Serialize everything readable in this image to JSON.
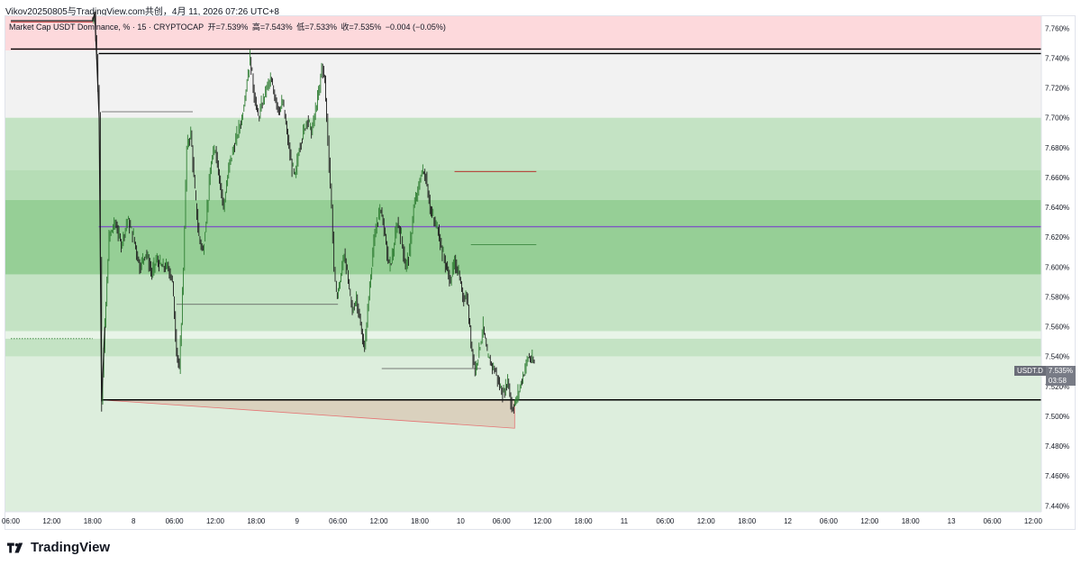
{
  "attribution": "Vikov20250805与TradingView.com共创，4月 11, 2026 07:26 UTC+8",
  "legend": {
    "symbol": "Market Cap USDT Dominance, % · 15 · CRYPTOCAP",
    "open": "开=7.539%",
    "high": "高=7.543%",
    "low": "低=7.533%",
    "close": "收=7.535%",
    "change": "−0.004 (−0.05%)"
  },
  "price_tag": {
    "symbol": "USDT.D",
    "price": "7.535%",
    "countdown": "03:58"
  },
  "logo_text": "TradingView",
  "colors": {
    "red_zone": "#fdd9dc",
    "gray_zone": "#f2f2f2",
    "green_light": "#ddeedd",
    "green_mid": "#c4e3c4",
    "green_dark": "#96cf96",
    "purple_line": "#7e57c2",
    "candle_up": "#2e7d32",
    "candle_down": "#1b1b1b"
  },
  "chart_data": {
    "type": "line",
    "symbol": "USDT.D",
    "interval": "15",
    "y_ticks": [
      "7.760%",
      "7.740%",
      "7.720%",
      "7.700%",
      "7.680%",
      "7.660%",
      "7.640%",
      "7.620%",
      "7.600%",
      "7.580%",
      "7.560%",
      "7.540%",
      "7.520%",
      "7.500%",
      "7.480%",
      "7.460%",
      "7.440%"
    ],
    "x_ticks": [
      "06:00",
      "12:00",
      "18:00",
      "8",
      "06:00",
      "12:00",
      "18:00",
      "9",
      "06:00",
      "12:00",
      "18:00",
      "10",
      "06:00",
      "12:00",
      "18:00",
      "11",
      "06:00",
      "12:00",
      "18:00",
      "12",
      "06:00",
      "12:00",
      "18:00",
      "13",
      "06:00",
      "12:00"
    ],
    "ylim": [
      7.436,
      7.768
    ],
    "x_start": "7 06:00",
    "x_end": "13 12:00",
    "x_slots": 25,
    "series": [
      {
        "values": [
          [
            0.0,
            7.765
          ],
          [
            2.0,
            7.765
          ],
          [
            2.05,
            7.77
          ],
          [
            2.1,
            7.74
          ],
          [
            2.16,
            7.7
          ],
          [
            2.22,
            7.51
          ],
          [
            2.3,
            7.56
          ],
          [
            2.4,
            7.62
          ],
          [
            2.55,
            7.63
          ],
          [
            2.7,
            7.615
          ],
          [
            2.85,
            7.632
          ],
          [
            3.0,
            7.62
          ],
          [
            3.15,
            7.6
          ],
          [
            3.3,
            7.61
          ],
          [
            3.45,
            7.595
          ],
          [
            3.55,
            7.605
          ],
          [
            3.7,
            7.6
          ],
          [
            3.85,
            7.6
          ],
          [
            3.95,
            7.59
          ],
          [
            4.05,
            7.545
          ],
          [
            4.12,
            7.53
          ],
          [
            4.22,
            7.6
          ],
          [
            4.3,
            7.68
          ],
          [
            4.4,
            7.69
          ],
          [
            4.5,
            7.65
          ],
          [
            4.6,
            7.62
          ],
          [
            4.7,
            7.61
          ],
          [
            4.8,
            7.64
          ],
          [
            4.9,
            7.67
          ],
          [
            5.0,
            7.68
          ],
          [
            5.1,
            7.66
          ],
          [
            5.2,
            7.64
          ],
          [
            5.35,
            7.67
          ],
          [
            5.45,
            7.68
          ],
          [
            5.55,
            7.69
          ],
          [
            5.65,
            7.7
          ],
          [
            5.75,
            7.72
          ],
          [
            5.85,
            7.74
          ],
          [
            5.95,
            7.715
          ],
          [
            6.05,
            7.7
          ],
          [
            6.15,
            7.71
          ],
          [
            6.25,
            7.72
          ],
          [
            6.35,
            7.725
          ],
          [
            6.45,
            7.715
          ],
          [
            6.55,
            7.705
          ],
          [
            6.65,
            7.71
          ],
          [
            6.75,
            7.69
          ],
          [
            6.85,
            7.67
          ],
          [
            6.95,
            7.66
          ],
          [
            7.05,
            7.68
          ],
          [
            7.15,
            7.69
          ],
          [
            7.25,
            7.7
          ],
          [
            7.35,
            7.69
          ],
          [
            7.45,
            7.705
          ],
          [
            7.55,
            7.72
          ],
          [
            7.6,
            7.735
          ],
          [
            7.68,
            7.725
          ],
          [
            7.72,
            7.7
          ],
          [
            7.78,
            7.67
          ],
          [
            7.84,
            7.64
          ],
          [
            7.9,
            7.6
          ],
          [
            7.96,
            7.58
          ],
          [
            8.05,
            7.59
          ],
          [
            8.15,
            7.61
          ],
          [
            8.25,
            7.59
          ],
          [
            8.35,
            7.57
          ],
          [
            8.45,
            7.58
          ],
          [
            8.55,
            7.56
          ],
          [
            8.65,
            7.545
          ],
          [
            8.75,
            7.58
          ],
          [
            8.85,
            7.61
          ],
          [
            8.95,
            7.63
          ],
          [
            9.05,
            7.64
          ],
          [
            9.15,
            7.62
          ],
          [
            9.25,
            7.6
          ],
          [
            9.35,
            7.61
          ],
          [
            9.45,
            7.63
          ],
          [
            9.55,
            7.62
          ],
          [
            9.65,
            7.6
          ],
          [
            9.75,
            7.61
          ],
          [
            9.85,
            7.64
          ],
          [
            9.95,
            7.65
          ],
          [
            10.05,
            7.665
          ],
          [
            10.15,
            7.66
          ],
          [
            10.25,
            7.64
          ],
          [
            10.35,
            7.63
          ],
          [
            10.45,
            7.625
          ],
          [
            10.55,
            7.61
          ],
          [
            10.65,
            7.6
          ],
          [
            10.75,
            7.59
          ],
          [
            10.85,
            7.605
          ],
          [
            10.95,
            7.595
          ],
          [
            11.05,
            7.58
          ],
          [
            11.15,
            7.58
          ],
          [
            11.25,
            7.55
          ],
          [
            11.35,
            7.53
          ],
          [
            11.45,
            7.545
          ],
          [
            11.55,
            7.56
          ],
          [
            11.65,
            7.54
          ],
          [
            11.75,
            7.535
          ],
          [
            11.85,
            7.53
          ],
          [
            11.95,
            7.52
          ],
          [
            12.05,
            7.515
          ],
          [
            12.15,
            7.525
          ],
          [
            12.25,
            7.505
          ],
          [
            12.35,
            7.51
          ],
          [
            12.45,
            7.52
          ],
          [
            12.55,
            7.53
          ],
          [
            12.65,
            7.54
          ],
          [
            12.75,
            7.537
          ],
          [
            12.8,
            7.535
          ]
        ]
      }
    ],
    "zones": [
      {
        "name": "resistance-zone",
        "from": 7.745,
        "to": 7.768,
        "color": "#fdd9dc"
      },
      {
        "name": "upper-neutral-zone",
        "from": 7.7,
        "to": 7.745,
        "color": "#f2f2f2"
      },
      {
        "name": "green-zone-1",
        "from": 7.665,
        "to": 7.7,
        "color": "#c4e3c4"
      },
      {
        "name": "green-zone-2",
        "from": 7.645,
        "to": 7.665,
        "color": "#b6ddb6"
      },
      {
        "name": "green-zone-3",
        "from": 7.595,
        "to": 7.645,
        "color": "#96cf96"
      },
      {
        "name": "green-zone-4",
        "from": 7.557,
        "to": 7.595,
        "color": "#c4e3c4"
      },
      {
        "name": "green-zone-5",
        "from": 7.552,
        "to": 7.557,
        "color": "#e8f4e8"
      },
      {
        "name": "green-zone-6",
        "from": 7.54,
        "to": 7.552,
        "color": "#c4e3c4"
      },
      {
        "name": "support-zone",
        "from": 7.436,
        "to": 7.54,
        "color": "#ddeedd"
      }
    ],
    "levels": [
      {
        "name": "level-7745",
        "value": 7.746,
        "x_from": 0.0,
        "color": "#000000"
      },
      {
        "name": "level-7743",
        "value": 7.743,
        "x_from": 2.15,
        "color": "#000000"
      },
      {
        "name": "level-purple",
        "value": 7.627,
        "x_from": 2.15,
        "color": "#7e57c2"
      },
      {
        "name": "level-7511",
        "value": 7.511,
        "x_from": 2.22,
        "color": "#000000"
      }
    ],
    "drawing_triangle": [
      [
        2.22,
        7.511
      ],
      [
        12.32,
        7.511
      ],
      [
        12.32,
        7.492
      ]
    ],
    "segments": [
      {
        "x1": 0.0,
        "x2": 2.0,
        "y": 7.764,
        "color": "#b71c1c"
      },
      {
        "x1": 2.22,
        "x2": 4.45,
        "y": 7.704,
        "color": "#555555"
      },
      {
        "x1": 4.05,
        "x2": 8.0,
        "y": 7.575,
        "color": "#555555"
      },
      {
        "x1": 9.07,
        "x2": 11.5,
        "y": 7.532,
        "color": "#555555"
      },
      {
        "x1": 10.85,
        "x2": 12.85,
        "y": 7.664,
        "color": "#b71c1c"
      },
      {
        "x1": 11.25,
        "x2": 12.85,
        "y": 7.615,
        "color": "#2e7d32"
      },
      {
        "x1": 0.0,
        "x2": 2.0,
        "y": 7.552,
        "color": "#2e7d32",
        "dashed": true
      }
    ]
  }
}
